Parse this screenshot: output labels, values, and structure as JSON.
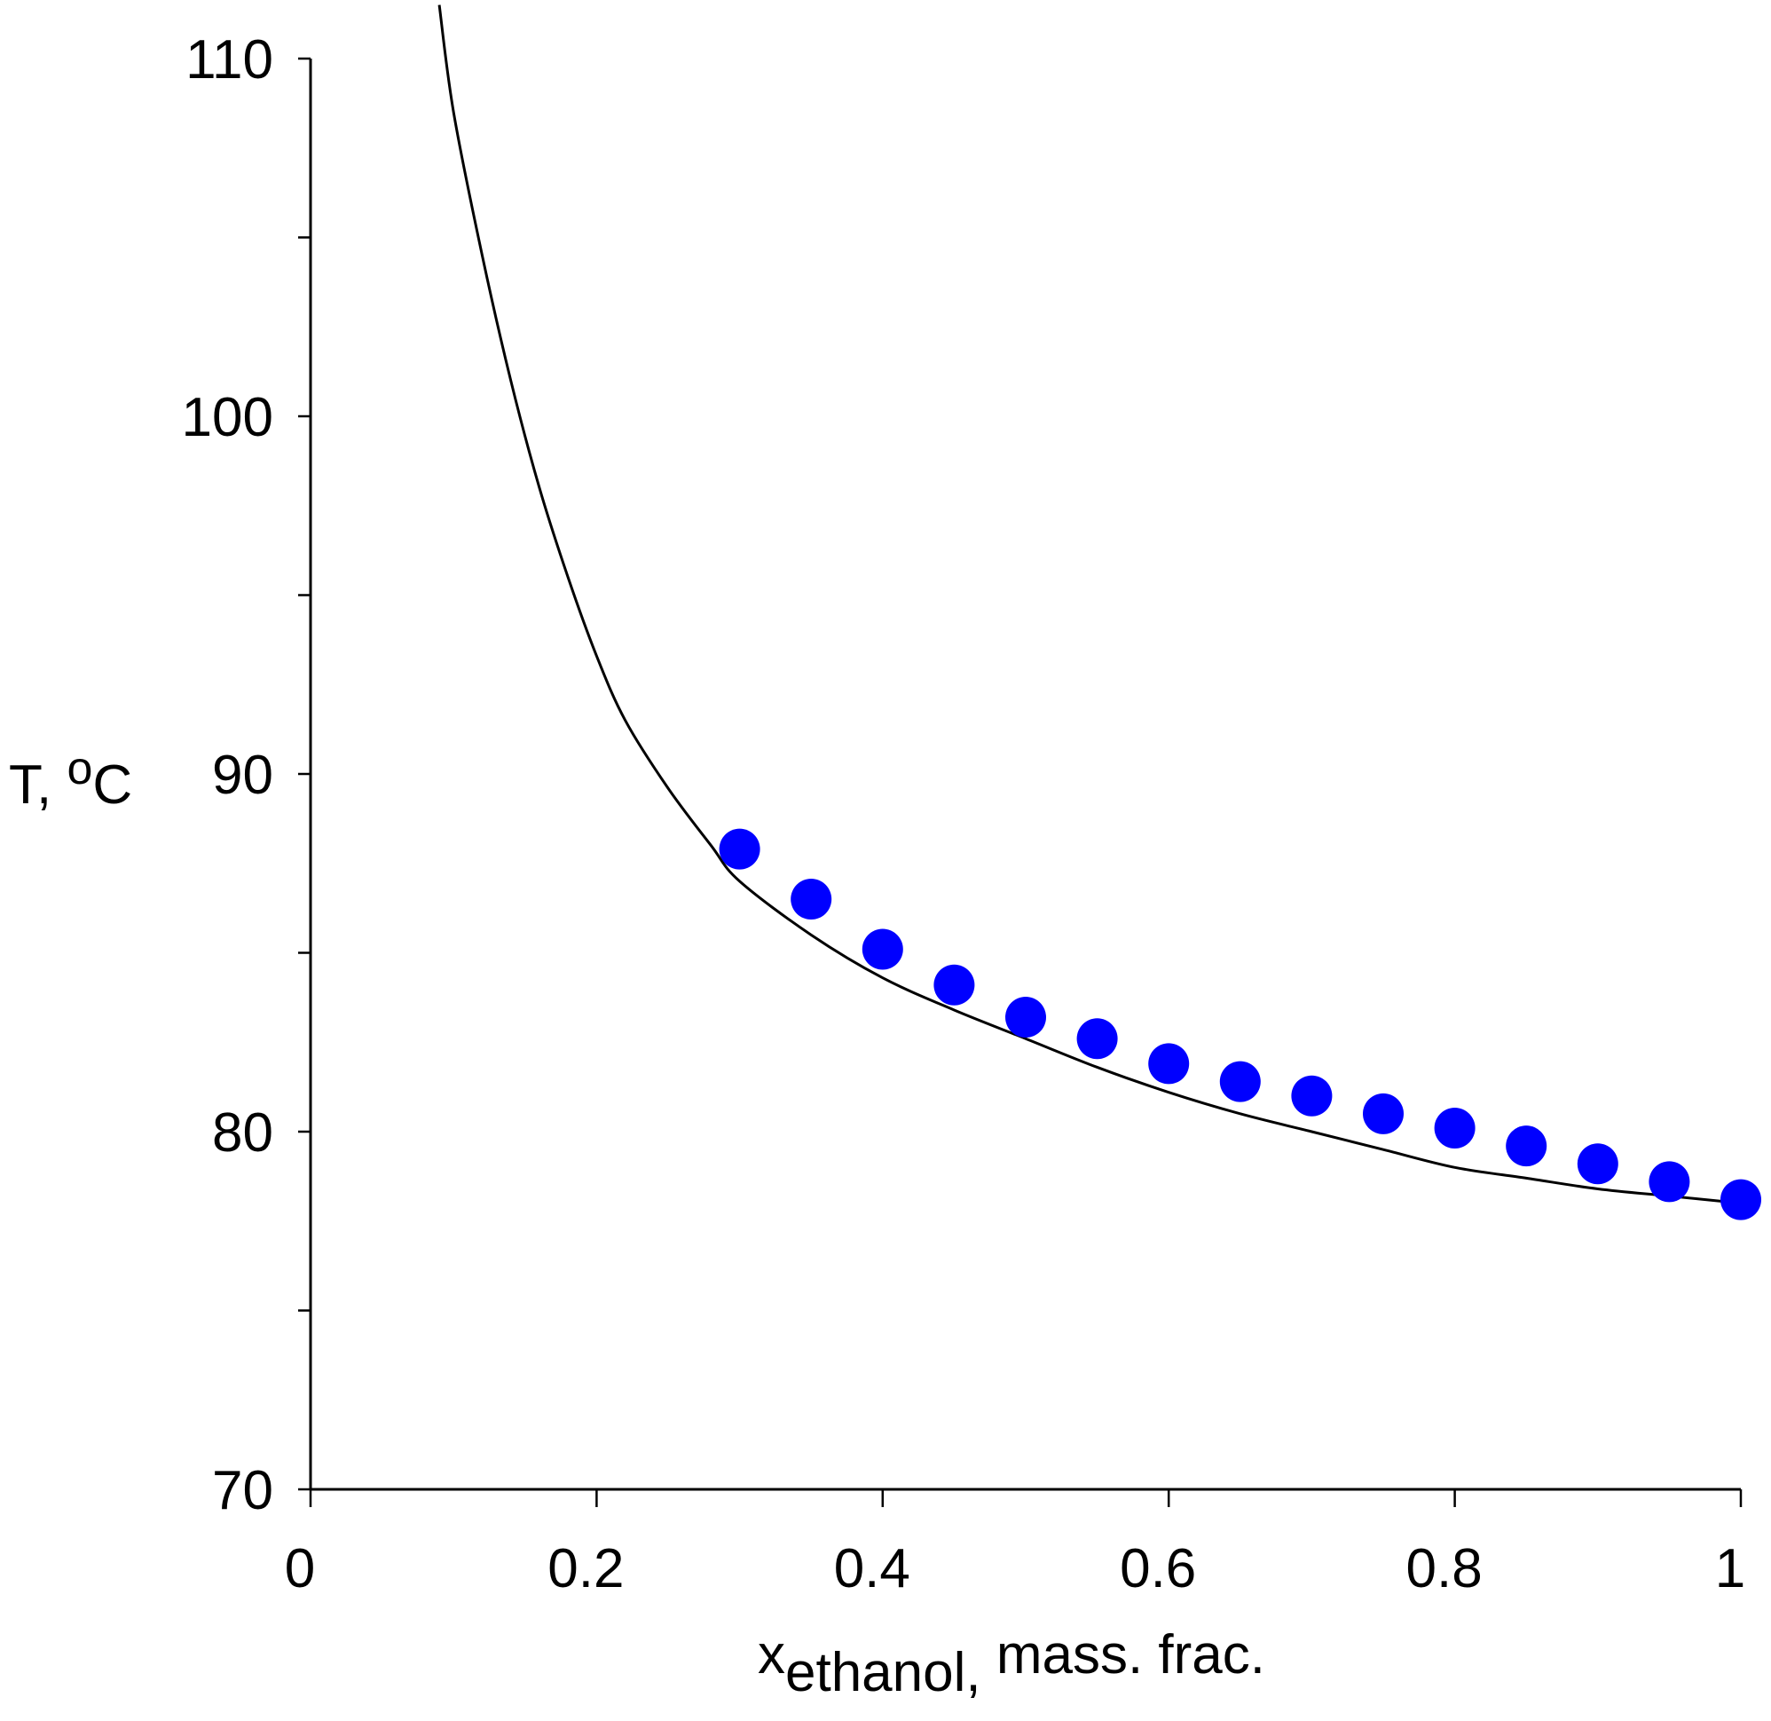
{
  "chart_data": {
    "type": "scatter",
    "xlabel": {
      "main": "x",
      "subscript": "ethanol,",
      "suffix": " mass. frac."
    },
    "ylabel": {
      "main": "T, ",
      "superscript": "o",
      "suffix": "C"
    },
    "xlim": [
      0,
      1
    ],
    "ylim": [
      70,
      110
    ],
    "x_ticks": [
      0,
      0.2,
      0.4,
      0.6,
      0.8,
      1
    ],
    "x_tick_labels": [
      "0",
      "0.2",
      "0.4",
      "0.6",
      "0.8",
      "1"
    ],
    "y_ticks": [
      70,
      75,
      80,
      85,
      90,
      95,
      100,
      105,
      110
    ],
    "y_tick_labels": [
      "70",
      "",
      "80",
      "",
      "90",
      "",
      "100",
      "",
      "110"
    ],
    "grid": false,
    "series": [
      {
        "kind": "points",
        "color": "#0000ff",
        "x": [
          0.3,
          0.35,
          0.4,
          0.45,
          0.5,
          0.55,
          0.6,
          0.65,
          0.7,
          0.75,
          0.8,
          0.85,
          0.9,
          0.95,
          1.0
        ],
        "y": [
          87.9,
          86.5,
          85.1,
          84.1,
          83.2,
          82.6,
          81.9,
          81.4,
          81.0,
          80.5,
          80.1,
          79.6,
          79.1,
          78.6,
          78.1
        ]
      },
      {
        "kind": "line",
        "color": "#000000",
        "x": [
          0.09,
          0.1,
          0.12,
          0.14,
          0.16,
          0.18,
          0.2,
          0.22,
          0.25,
          0.28,
          0.3,
          0.35,
          0.4,
          0.45,
          0.5,
          0.55,
          0.6,
          0.65,
          0.7,
          0.75,
          0.8,
          0.85,
          0.9,
          0.95,
          1.0
        ],
        "y": [
          111.5,
          108.5,
          104.5,
          101.0,
          98.0,
          95.5,
          93.3,
          91.5,
          89.6,
          88.0,
          87.0,
          85.5,
          84.3,
          83.4,
          82.6,
          81.8,
          81.1,
          80.5,
          80.0,
          79.5,
          79.0,
          78.7,
          78.4,
          78.2,
          78.0
        ]
      }
    ]
  }
}
